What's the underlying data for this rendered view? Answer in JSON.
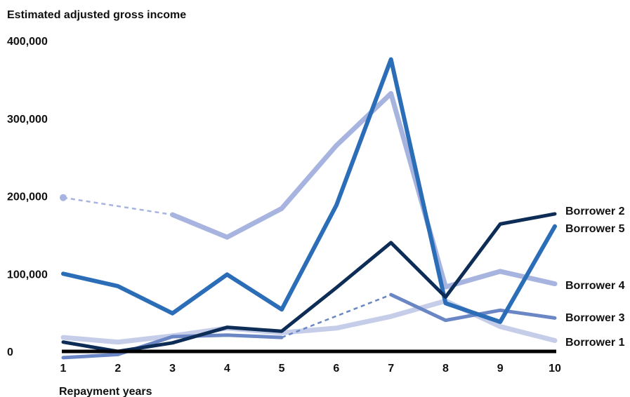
{
  "chart_data": {
    "type": "line",
    "ylabel": "Estimated adjusted gross income",
    "xlabel": "Repayment years",
    "x": [
      1,
      2,
      3,
      4,
      5,
      6,
      7,
      8,
      9,
      10
    ],
    "x_tick_labels": [
      "1",
      "2",
      "3",
      "4",
      "5",
      "6",
      "7",
      "8",
      "9",
      "10"
    ],
    "ylim": [
      0,
      400000
    ],
    "y_ticks": [
      0,
      100000,
      200000,
      300000,
      400000
    ],
    "y_tick_labels": [
      "0",
      "100,000",
      "200,000",
      "300,000",
      "400,000"
    ],
    "grid": false,
    "legend": "right end of lines",
    "series": [
      {
        "name": "Borrower 1",
        "color": "#c5cde9",
        "values": [
          18000,
          12000,
          20000,
          30000,
          24000,
          30000,
          45000,
          65000,
          32000,
          14000
        ]
      },
      {
        "name": "Borrower 4",
        "color": "#a7b4df",
        "values": [
          198000,
          null,
          176000,
          147000,
          184000,
          265000,
          332000,
          83000,
          103000,
          87000
        ],
        "dashed_segments": [
          [
            1,
            3
          ]
        ]
      },
      {
        "name": "Borrower 3",
        "color": "#6a86c4",
        "values": [
          -8000,
          -4000,
          19000,
          21000,
          18000,
          null,
          73000,
          40000,
          53000,
          43000
        ],
        "dashed_segments": [
          [
            5,
            7
          ]
        ]
      },
      {
        "name": "Borrower 5",
        "color": "#2b6eb7",
        "values": [
          100000,
          84000,
          49000,
          99000,
          54000,
          188000,
          376000,
          62000,
          38000,
          161000
        ]
      },
      {
        "name": "Borrower 2",
        "color": "#0d2d57",
        "values": [
          12000,
          0,
          11000,
          31000,
          26000,
          82000,
          140000,
          70000,
          164000,
          177000
        ]
      }
    ],
    "zero_line_color": "#000000"
  }
}
